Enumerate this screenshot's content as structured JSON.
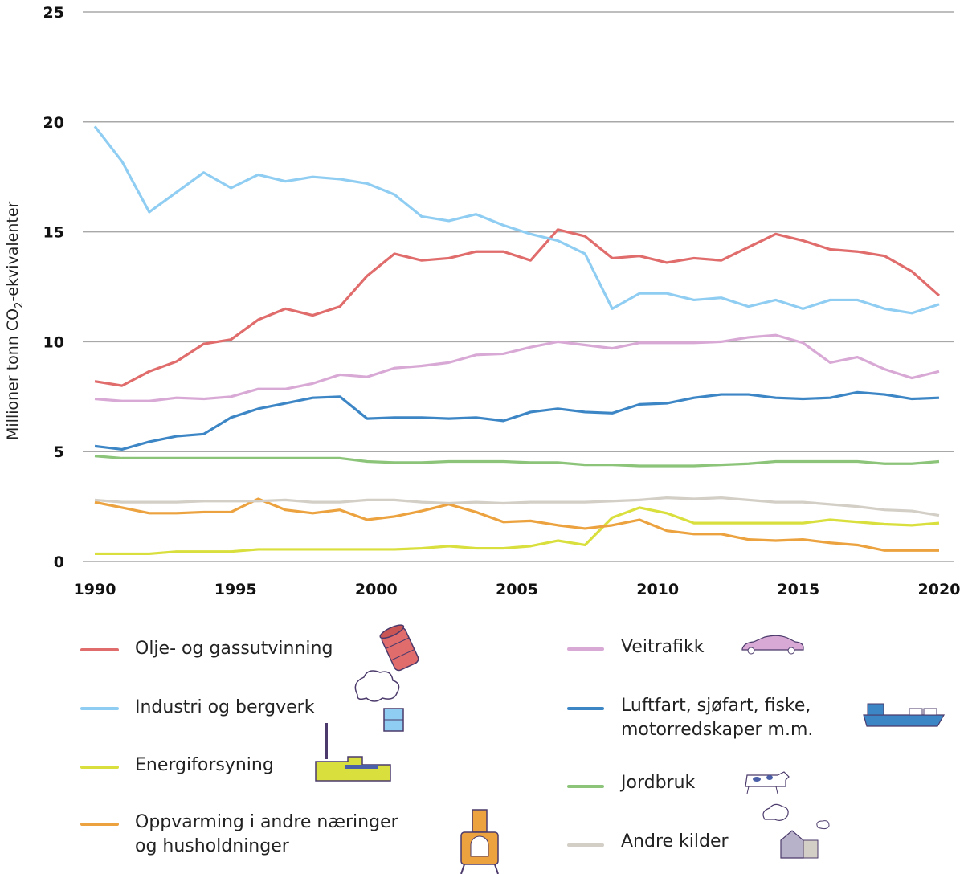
{
  "chart_data": {
    "type": "line",
    "title": "",
    "ylabel": {
      "prefix": "Millioner tonn CO",
      "sub": "2",
      "suffix": "-ekvivalenter"
    },
    "xlabel": "",
    "ylim": [
      0,
      25
    ],
    "yticks": [
      "0",
      "5",
      "10",
      "15",
      "20",
      "25"
    ],
    "xticks": [
      "1990",
      "1995",
      "2000",
      "2005",
      "2010",
      "2015",
      "2020"
    ],
    "grid": "horizontal",
    "legend_position": "bottom",
    "series": [
      {
        "name": "Olje- og gassutvinning",
        "color": "#e06c6c",
        "icon": "oil-barrel-icon",
        "values": [
          8.2,
          8.0,
          8.65,
          9.1,
          9.9,
          10.1,
          11.0,
          11.5,
          11.2,
          11.6,
          13.0,
          14.0,
          13.7,
          13.8,
          14.1,
          14.1,
          13.7,
          15.1,
          14.8,
          13.8,
          13.9,
          13.6,
          13.8,
          13.7,
          14.3,
          14.9,
          14.6,
          14.2,
          14.1,
          13.9,
          13.2,
          12.1
        ]
      },
      {
        "name": "Industri og bergverk",
        "color": "#8fcdf2",
        "icon": "factory-smoke-icon",
        "values": [
          19.8,
          18.2,
          15.9,
          16.8,
          17.7,
          17.0,
          17.6,
          17.3,
          17.5,
          17.4,
          17.2,
          16.7,
          15.7,
          15.5,
          15.8,
          15.3,
          14.9,
          14.6,
          14.0,
          11.5,
          12.2,
          12.2,
          11.9,
          12.0,
          11.6,
          11.9,
          11.5,
          11.9,
          11.9,
          11.5,
          11.3,
          11.7
        ]
      },
      {
        "name": "Energiforsyning",
        "color": "#d9df3d",
        "icon": "power-plant-icon",
        "values": [
          0.35,
          0.35,
          0.35,
          0.45,
          0.45,
          0.45,
          0.55,
          0.55,
          0.55,
          0.55,
          0.55,
          0.55,
          0.6,
          0.7,
          0.6,
          0.6,
          0.7,
          0.95,
          0.75,
          2.0,
          2.45,
          2.2,
          1.75,
          1.75,
          1.75,
          1.75,
          1.75,
          1.9,
          1.8,
          1.7,
          1.65,
          1.75
        ]
      },
      {
        "name": "Oppvarming i andre næringer og husholdninger",
        "lines": [
          "Oppvarming i andre næringer",
          "og husholdninger"
        ],
        "color": "#eba23f",
        "icon": "stove-icon",
        "values": [
          2.7,
          2.45,
          2.2,
          2.2,
          2.25,
          2.25,
          2.85,
          2.35,
          2.2,
          2.35,
          1.9,
          2.05,
          2.3,
          2.6,
          2.25,
          1.8,
          1.85,
          1.65,
          1.5,
          1.65,
          1.9,
          1.4,
          1.25,
          1.25,
          1.0,
          0.95,
          1.0,
          0.85,
          0.75,
          0.5,
          0.5,
          0.5
        ]
      },
      {
        "name": "Veitrafikk",
        "color": "#d9a9d6",
        "icon": "car-icon",
        "values": [
          7.4,
          7.3,
          7.3,
          7.45,
          7.4,
          7.5,
          7.85,
          7.85,
          8.1,
          8.5,
          8.4,
          8.8,
          8.9,
          9.05,
          9.4,
          9.45,
          9.75,
          10.0,
          9.85,
          9.7,
          9.95,
          9.95,
          9.95,
          10.0,
          10.2,
          10.3,
          9.95,
          9.05,
          9.3,
          8.75,
          8.35,
          8.65
        ]
      },
      {
        "name": "Luftfart, sjøfart, fiske, motorredskaper m.m.",
        "lines": [
          "Luftfart, sjøfart, fiske,",
          "motorredskaper m.m."
        ],
        "color": "#3d86c6",
        "icon": "ship-icon",
        "values": [
          5.25,
          5.1,
          5.45,
          5.7,
          5.8,
          6.55,
          6.95,
          7.2,
          7.45,
          7.5,
          6.5,
          6.55,
          6.55,
          6.5,
          6.55,
          6.4,
          6.8,
          6.95,
          6.8,
          6.75,
          7.15,
          7.2,
          7.45,
          7.6,
          7.6,
          7.45,
          7.4,
          7.45,
          7.7,
          7.6,
          7.4,
          7.45
        ]
      },
      {
        "name": "Jordbruk",
        "color": "#8cc47a",
        "icon": "cow-icon",
        "values": [
          4.8,
          4.7,
          4.7,
          4.7,
          4.7,
          4.7,
          4.7,
          4.7,
          4.7,
          4.7,
          4.55,
          4.5,
          4.5,
          4.55,
          4.55,
          4.55,
          4.5,
          4.5,
          4.4,
          4.4,
          4.35,
          4.35,
          4.35,
          4.4,
          4.45,
          4.55,
          4.55,
          4.55,
          4.55,
          4.45,
          4.45,
          4.55
        ]
      },
      {
        "name": "Andre kilder",
        "color": "#d3cfc6",
        "icon": "house-smoke-icon",
        "values": [
          2.8,
          2.7,
          2.7,
          2.7,
          2.75,
          2.75,
          2.75,
          2.8,
          2.7,
          2.7,
          2.8,
          2.8,
          2.7,
          2.65,
          2.7,
          2.65,
          2.7,
          2.7,
          2.7,
          2.75,
          2.8,
          2.9,
          2.85,
          2.9,
          2.8,
          2.7,
          2.7,
          2.6,
          2.5,
          2.35,
          2.3,
          2.1
        ]
      }
    ]
  }
}
